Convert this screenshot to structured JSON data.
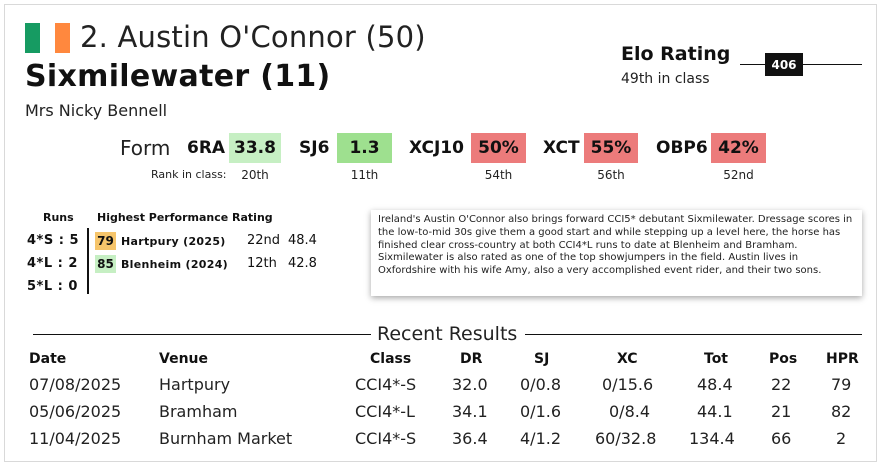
{
  "header": {
    "rider_title": "2. Austin O'Connor (50)",
    "horse": "Sixmilewater (11)",
    "owner": "Mrs Nicky Bennell",
    "flag": {
      "icon": "ireland-flag-icon",
      "colors": [
        "#169b62",
        "#ffffff",
        "#ff883e"
      ]
    }
  },
  "elo": {
    "label": "Elo Rating",
    "rating": "406",
    "class_rank": "49th in class"
  },
  "form": {
    "label": "Form",
    "rank_label": "Rank in class:",
    "metrics": [
      {
        "name": "6RA",
        "value": "33.8",
        "rank": "20th",
        "color": "#c6efc3"
      },
      {
        "name": "SJ6",
        "value": "1.3",
        "rank": "11th",
        "color": "#9ee08f"
      },
      {
        "name": "XCJ10",
        "value": "50%",
        "rank": "54th",
        "color": "#ec7b7b"
      },
      {
        "name": "XCT",
        "value": "55%",
        "rank": "56th",
        "color": "#ec7b7b"
      },
      {
        "name": "OBP6",
        "value": "42%",
        "rank": "52nd",
        "color": "#ec7b7b"
      }
    ]
  },
  "runs": {
    "header": "Runs",
    "rows": [
      {
        "label": "4*S : 5"
      },
      {
        "label": "4*L : 2"
      },
      {
        "label": "5*L : 0"
      }
    ]
  },
  "hpr": {
    "header": "Highest Performance Rating",
    "rows": [
      {
        "score": "79",
        "event": "Hartpury (2025)",
        "position": "22nd",
        "total": "48.4",
        "color": "#f6c56b"
      },
      {
        "score": "85",
        "event": "Blenheim (2024)",
        "position": "12th",
        "total": "42.8",
        "color": "#c6efc3"
      }
    ]
  },
  "blurb": "Ireland's Austin O'Connor also brings forward CCI5* debutant Sixmilewater. Dressage scores in the low-to-mid 30s give them a good start and while stepping up a level here, the horse has finished clear cross-country at both CCI4*L runs to date at Blenheim and Bramham. Sixmilewater is also rated as one of the top showjumpers in the field. Austin lives in Oxfordshire with his wife Amy, also a very accomplished event rider, and their two sons.",
  "recent_results": {
    "title": "Recent Results",
    "columns": [
      "Date",
      "Venue",
      "Class",
      "DR",
      "SJ",
      "XC",
      "Tot",
      "Pos",
      "HPR"
    ],
    "rows": [
      [
        "07/08/2025",
        "Hartpury",
        "CCI4*-S",
        "32.0",
        "0/0.8",
        "0/15.6",
        "48.4",
        "22",
        "79"
      ],
      [
        "05/06/2025",
        "Bramham",
        "CCI4*-L",
        "34.1",
        "0/1.6",
        "0/8.4",
        "44.1",
        "21",
        "82"
      ],
      [
        "11/04/2025",
        "Burnham Market",
        "CCI4*-S",
        "36.4",
        "4/1.2",
        "60/32.8",
        "134.4",
        "66",
        "2"
      ]
    ]
  }
}
